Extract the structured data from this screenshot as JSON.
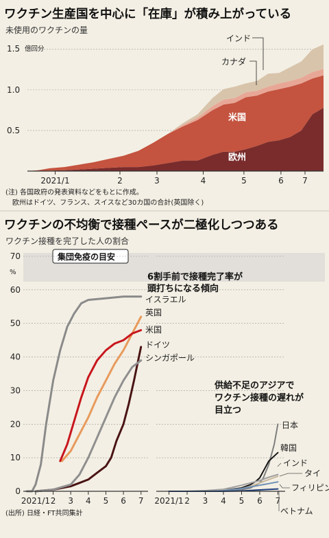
{
  "chart_data": [
    {
      "type": "area",
      "title": "ワクチン生産国を中心に「在庫」が積み上がっている",
      "subtitle": "未使用のワクチンの量",
      "unit": "億回分",
      "ylim": [
        0,
        1.6
      ],
      "yticks": [
        "1.5",
        "1.0",
        "0.5"
      ],
      "ytick_values": [
        1.5,
        1.0,
        0.5
      ],
      "xticks": [
        "2021/1",
        "2",
        "3",
        "4",
        "5",
        "6",
        "7"
      ],
      "xtick_values": [
        0.75,
        2.5,
        3.5,
        4.75,
        5.85,
        6.85,
        7.5
      ],
      "x_range": [
        0,
        8
      ],
      "grid": true,
      "colors": {
        "欧州": "#7a2c2c",
        "米国": "#c4533f",
        "カナダ": "#e8a796",
        "インド": "#d8c4ab"
      },
      "series_labels": [
        "欧州",
        "米国",
        "カナダ",
        "インド"
      ],
      "x": [
        0,
        0.3,
        0.6,
        1.0,
        1.4,
        1.8,
        2.2,
        2.6,
        3.0,
        3.4,
        3.8,
        4.2,
        4.6,
        5.0,
        5.3,
        5.6,
        5.9,
        6.2,
        6.5,
        6.8,
        7.1,
        7.4,
        7.7,
        8.0
      ],
      "series": [
        {
          "name": "欧州",
          "values": [
            0,
            0,
            0.005,
            0.01,
            0.02,
            0.03,
            0.04,
            0.05,
            0.05,
            0.07,
            0.1,
            0.13,
            0.13,
            0.2,
            0.24,
            0.24,
            0.27,
            0.31,
            0.36,
            0.38,
            0.42,
            0.5,
            0.7,
            0.78
          ]
        },
        {
          "name": "米国",
          "values": [
            0,
            0.01,
            0.03,
            0.04,
            0.06,
            0.08,
            0.11,
            0.14,
            0.2,
            0.28,
            0.36,
            0.42,
            0.5,
            0.55,
            0.58,
            0.6,
            0.64,
            0.62,
            0.62,
            0.63,
            0.62,
            0.58,
            0.44,
            0.4
          ]
        },
        {
          "name": "カナダ",
          "values": [
            0,
            0,
            0,
            0,
            0,
            0,
            0,
            0,
            0,
            0,
            0,
            0.02,
            0.03,
            0.05,
            0.06,
            0.06,
            0.06,
            0.06,
            0.06,
            0.07,
            0.07,
            0.07,
            0.08,
            0.08
          ]
        },
        {
          "name": "インド",
          "values": [
            0,
            0,
            0,
            0,
            0,
            0,
            0,
            0,
            0,
            0,
            0,
            0.02,
            0.04,
            0.1,
            0.13,
            0.14,
            0.11,
            0.12,
            0.16,
            0.13,
            0.17,
            0.2,
            0.28,
            0.3
          ]
        }
      ]
    },
    {
      "type": "line",
      "title": "ワクチンの不均衡で接種ペースが二極化しつつある",
      "subtitle": "ワクチン接種を完了した人の割合",
      "unit": "%",
      "ylim": [
        0,
        70
      ],
      "yticks": [
        "70",
        "60",
        "50",
        "40",
        "30",
        "20",
        "10",
        "0"
      ],
      "ytick_values": [
        70,
        60,
        50,
        40,
        30,
        20,
        10,
        0
      ],
      "xticks": [
        "2021/1",
        "2",
        "3",
        "4",
        "5",
        "6",
        "7"
      ],
      "xtick_values": [
        1,
        2,
        3,
        4,
        5,
        6,
        7
      ],
      "x_range": [
        0.3,
        7.4
      ],
      "grid": true,
      "herd_immunity_band": [
        60,
        70
      ],
      "herd_immunity_label": "集団免疫の目安",
      "panels": [
        {
          "name": "left",
          "series": [
            {
              "name": "イスラエル",
              "color": "#8a8a8a",
              "x": [
                0.5,
                0.8,
                1.0,
                1.3,
                1.6,
                2.0,
                2.4,
                2.8,
                3.2,
                3.6,
                4.0,
                5.0,
                6.0,
                7.0
              ],
              "y": [
                0,
                0,
                2,
                8,
                20,
                33,
                42,
                49,
                53,
                56,
                57,
                57.5,
                58,
                58
              ]
            },
            {
              "name": "英国",
              "color": "#e89a5c",
              "x": [
                2.5,
                3.0,
                3.5,
                4.0,
                4.5,
                5.0,
                5.5,
                6.0,
                6.5,
                7.0
              ],
              "y": [
                9,
                12,
                17,
                22,
                28,
                33,
                38,
                42,
                47,
                52
              ]
            },
            {
              "name": "米国",
              "color": "#c8161d",
              "x": [
                2.4,
                2.8,
                3.2,
                3.6,
                4.0,
                4.5,
                5.0,
                5.5,
                6.0,
                6.5,
                7.0
              ],
              "y": [
                9,
                14,
                21,
                28,
                34,
                39,
                42,
                44,
                45,
                47,
                48
              ]
            },
            {
              "name": "ドイツ",
              "color": "#4a1414",
              "x": [
                1.0,
                2.0,
                3.0,
                3.5,
                4.0,
                4.5,
                5.0,
                5.3,
                5.6,
                6.0,
                6.3,
                6.6,
                7.0
              ],
              "y": [
                0,
                0.5,
                1.5,
                2.5,
                3.5,
                5.5,
                7.5,
                10,
                15,
                20,
                26,
                33,
                43
              ]
            },
            {
              "name": "シンガポール",
              "color": "#8f8f8f",
              "x": [
                1.0,
                2.0,
                3.0,
                3.5,
                4.0,
                4.5,
                5.0,
                5.5,
                6.0,
                6.5,
                7.0
              ],
              "y": [
                0,
                0.5,
                2,
                5,
                10,
                16,
                22,
                28,
                33,
                37,
                39
              ]
            }
          ]
        },
        {
          "name": "right",
          "series": [
            {
              "name": "日本",
              "color": "#7f7f7f",
              "x": [
                1.0,
                2.0,
                3.0,
                4.0,
                5.0,
                5.5,
                6.0,
                6.2,
                6.5,
                6.8,
                7.0
              ],
              "y": [
                0,
                0,
                0,
                0.2,
                0.5,
                1,
                2.5,
                4,
                8,
                14,
                20
              ]
            },
            {
              "name": "韓国",
              "color": "#151515",
              "x": [
                1.0,
                2.0,
                3.0,
                4.0,
                5.0,
                5.5,
                5.8,
                6.0,
                6.2,
                6.5,
                6.8,
                7.0
              ],
              "y": [
                0,
                0,
                0,
                0.3,
                1,
                2,
                3,
                4,
                6,
                9,
                10.5,
                11.5
              ]
            },
            {
              "name": "インド",
              "color": "#a0a0a0",
              "x": [
                1.0,
                2.0,
                3.0,
                4.0,
                5.0,
                5.5,
                6.0,
                6.5,
                7.0
              ],
              "y": [
                0,
                0,
                0.2,
                0.6,
                1.8,
                2.5,
                3.2,
                4.2,
                5
              ]
            },
            {
              "name": "タイ",
              "color": "#c9b79c",
              "x": [
                1.0,
                2.0,
                3.0,
                4.0,
                5.0,
                5.5,
                6.0,
                6.5,
                7.0
              ],
              "y": [
                0,
                0,
                0,
                0.3,
                0.8,
                1.5,
                2.5,
                3.5,
                4.5
              ]
            },
            {
              "name": "フィリピン",
              "color": "#6c8fb5",
              "x": [
                1.0,
                2.0,
                3.0,
                4.0,
                5.0,
                6.0,
                6.5,
                7.0
              ],
              "y": [
                0,
                0,
                0,
                0.2,
                0.8,
                1.8,
                2.3,
                2.8
              ]
            },
            {
              "name": "ベトナム",
              "color": "#1f3f7a",
              "x": [
                1.0,
                2.0,
                3.0,
                4.0,
                5.0,
                6.0,
                7.0
              ],
              "y": [
                0,
                0,
                0,
                0,
                0.1,
                0.4,
                0.7
              ]
            }
          ]
        }
      ],
      "annotations": {
        "left_note_line1": "6割手前で接種完了率が",
        "left_note_line2": "頭打ちになる傾向",
        "right_note_line1": "供給不足のアジアで",
        "right_note_line2": "ワクチン接種の遅れが",
        "right_note_line3": "目立つ"
      }
    }
  ],
  "notes": {
    "note1": "(注) 各国政府の発表資料などをもとに作成。",
    "note2": "欧州はドイツ、フランス、スイスなど30カ国の合計(英国除く)",
    "source": "(出所) 日経・FT共同集計"
  }
}
